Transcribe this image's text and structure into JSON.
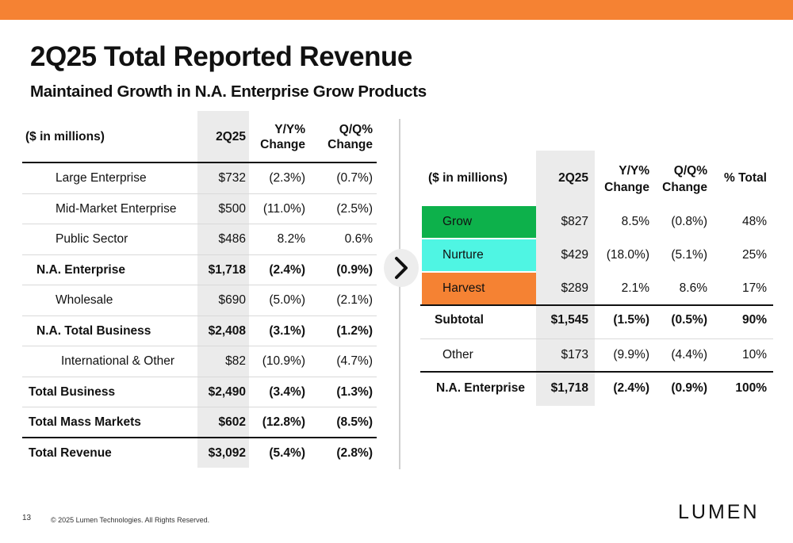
{
  "colors": {
    "accent": "#F58233",
    "grow": "#0DB14B",
    "nurture": "#4FF5E3",
    "harvest": "#F58233",
    "shade": "#EBEBEB"
  },
  "title": "2Q25 Total Reported Revenue",
  "subtitle": "Maintained Growth in N.A. Enterprise Grow Products",
  "left_table": {
    "headers": {
      "label": "($ in millions)",
      "value": "2Q25",
      "yy_1": "Y/Y%",
      "yy_2": "Change",
      "qq_1": "Q/Q%",
      "qq_2": "Change"
    },
    "rows": [
      {
        "label": "Large Enterprise",
        "value": "$732",
        "yy": "(2.3%)",
        "qq": "(0.7%)"
      },
      {
        "label": "Mid-Market Enterprise",
        "value": "$500",
        "yy": "(11.0%)",
        "qq": "(2.5%)"
      },
      {
        "label": "Public Sector",
        "value": "$486",
        "yy": "8.2%",
        "qq": "0.6%"
      },
      {
        "label": "N.A. Enterprise",
        "value": "$1,718",
        "yy": "(2.4%)",
        "qq": "(0.9%)"
      },
      {
        "label": "Wholesale",
        "value": "$690",
        "yy": "(5.0%)",
        "qq": "(2.1%)"
      },
      {
        "label": "N.A. Total Business",
        "value": "$2,408",
        "yy": "(3.1%)",
        "qq": "(1.2%)"
      },
      {
        "label": "International & Other",
        "value": "$82",
        "yy": "(10.9%)",
        "qq": "(4.7%)"
      },
      {
        "label": "Total Business",
        "value": "$2,490",
        "yy": "(3.4%)",
        "qq": "(1.3%)"
      },
      {
        "label": "Total Mass Markets",
        "value": "$602",
        "yy": "(12.8%)",
        "qq": "(8.5%)"
      },
      {
        "label": "Total Revenue",
        "value": "$3,092",
        "yy": "(5.4%)",
        "qq": "(2.8%)"
      }
    ]
  },
  "right_table": {
    "headers": {
      "label": "($ in millions)",
      "value": "2Q25",
      "yy_1": "Y/Y%",
      "yy_2": "Change",
      "qq_1": "Q/Q%",
      "qq_2": "Change",
      "total": "% Total"
    },
    "rows": [
      {
        "label": "Grow",
        "value": "$827",
        "yy": "8.5%",
        "qq": "(0.8%)",
        "total": "48%"
      },
      {
        "label": "Nurture",
        "value": "$429",
        "yy": "(18.0%)",
        "qq": "(5.1%)",
        "total": "25%"
      },
      {
        "label": "Harvest",
        "value": "$289",
        "yy": "2.1%",
        "qq": "8.6%",
        "total": "17%"
      },
      {
        "label": "Subtotal",
        "value": "$1,545",
        "yy": "(1.5%)",
        "qq": "(0.5%)",
        "total": "90%"
      },
      {
        "label": "Other",
        "value": "$173",
        "yy": "(9.9%)",
        "qq": "(4.4%)",
        "total": "10%"
      },
      {
        "label": "N.A. Enterprise",
        "value": "$1,718",
        "yy": "(2.4%)",
        "qq": "(0.9%)",
        "total": "100%"
      }
    ]
  },
  "arrow_icon": "chevron-right-icon",
  "footer": {
    "page_number": "13",
    "copyright": "© 2025 Lumen Technologies. All Rights Reserved.",
    "logo": "LUMEN"
  }
}
